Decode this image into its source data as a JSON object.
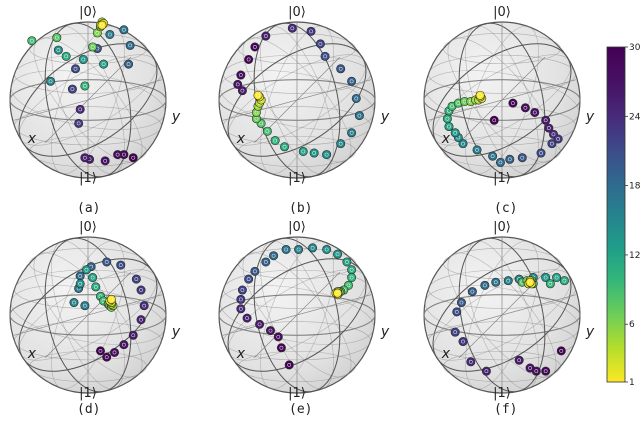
{
  "labels": {
    "top": "|0⟩",
    "bottom": "|1⟩",
    "x_axis": "x",
    "y_axis": "y"
  },
  "colorbar": {
    "ticks": [
      "30",
      "24",
      "18",
      "12",
      "6",
      "1"
    ],
    "min": 1,
    "max": 30
  },
  "colors": {
    "sphere": "#e3e3e3",
    "grid": "#7d7d7d",
    "edge": "#555555"
  },
  "panels": [
    {
      "caption": "(a)",
      "points": [
        [
          0.79,
          0.87
        ],
        [
          0.73,
          0.85
        ],
        [
          0.69,
          0.85
        ],
        [
          0.61,
          0.89
        ],
        [
          0.51,
          0.88
        ],
        [
          0.48,
          0.87
        ],
        [
          0.45,
          0.56
        ],
        [
          0.44,
          0.65
        ],
        [
          0.4,
          0.43
        ],
        [
          0.42,
          0.3
        ],
        [
          0.56,
          0.17
        ],
        [
          0.76,
          0.27
        ],
        [
          0.77,
          0.15
        ],
        [
          0.73,
          0.05
        ],
        [
          0.64,
          0.08
        ],
        [
          0.26,
          0.38
        ],
        [
          0.31,
          0.18
        ],
        [
          0.47,
          0.24
        ],
        [
          0.6,
          0.27
        ],
        [
          0.36,
          0.22
        ],
        [
          0.48,
          0.41
        ],
        [
          0.14,
          0.12
        ],
        [
          0.3,
          0.1
        ],
        [
          0.53,
          0.16
        ],
        [
          0.56,
          0.07
        ],
        [
          0.58,
          0.03
        ],
        [
          0.59,
          0.0
        ],
        [
          0.58,
          0.02
        ],
        [
          0.6,
          0.01
        ],
        [
          0.59,
          0.02
        ]
      ]
    },
    {
      "caption": "(b)",
      "points": [
        [
          0.19,
          0.24
        ],
        [
          0.23,
          0.16
        ],
        [
          0.14,
          0.34
        ],
        [
          0.12,
          0.4
        ],
        [
          0.15,
          0.44
        ],
        [
          0.3,
          0.09
        ],
        [
          0.47,
          0.04
        ],
        [
          0.59,
          0.06
        ],
        [
          0.65,
          0.14
        ],
        [
          0.68,
          0.22
        ],
        [
          0.78,
          0.3
        ],
        [
          0.85,
          0.38
        ],
        [
          0.88,
          0.49
        ],
        [
          0.9,
          0.6
        ],
        [
          0.85,
          0.71
        ],
        [
          0.78,
          0.78
        ],
        [
          0.69,
          0.85
        ],
        [
          0.61,
          0.84
        ],
        [
          0.54,
          0.83
        ],
        [
          0.42,
          0.8
        ],
        [
          0.36,
          0.76
        ],
        [
          0.31,
          0.7
        ],
        [
          0.27,
          0.65
        ],
        [
          0.24,
          0.62
        ],
        [
          0.24,
          0.58
        ],
        [
          0.25,
          0.54
        ],
        [
          0.26,
          0.52
        ],
        [
          0.27,
          0.5
        ],
        [
          0.26,
          0.48
        ],
        [
          0.25,
          0.47
        ]
      ]
    },
    {
      "caption": "(c)",
      "points": [
        [
          0.45,
          0.63
        ],
        [
          0.57,
          0.52
        ],
        [
          0.65,
          0.55
        ],
        [
          0.71,
          0.58
        ],
        [
          0.78,
          0.63
        ],
        [
          0.8,
          0.68
        ],
        [
          0.83,
          0.72
        ],
        [
          0.86,
          0.75
        ],
        [
          0.82,
          0.78
        ],
        [
          0.75,
          0.84
        ],
        [
          0.63,
          0.87
        ],
        [
          0.55,
          0.88
        ],
        [
          0.49,
          0.9
        ],
        [
          0.44,
          0.86
        ],
        [
          0.34,
          0.82
        ],
        [
          0.25,
          0.78
        ],
        [
          0.22,
          0.74
        ],
        [
          0.2,
          0.71
        ],
        [
          0.16,
          0.67
        ],
        [
          0.15,
          0.62
        ],
        [
          0.16,
          0.57
        ],
        [
          0.18,
          0.54
        ],
        [
          0.22,
          0.52
        ],
        [
          0.26,
          0.51
        ],
        [
          0.3,
          0.51
        ],
        [
          0.33,
          0.5
        ],
        [
          0.35,
          0.5
        ],
        [
          0.37,
          0.49
        ],
        [
          0.36,
          0.48
        ],
        [
          0.36,
          0.47
        ]
      ]
    },
    {
      "caption": "(d)",
      "points": [
        [
          0.58,
          0.73
        ],
        [
          0.62,
          0.77
        ],
        [
          0.67,
          0.74
        ],
        [
          0.73,
          0.69
        ],
        [
          0.79,
          0.63
        ],
        [
          0.84,
          0.53
        ],
        [
          0.86,
          0.44
        ],
        [
          0.84,
          0.34
        ],
        [
          0.81,
          0.27
        ],
        [
          0.71,
          0.18
        ],
        [
          0.62,
          0.16
        ],
        [
          0.52,
          0.19
        ],
        [
          0.45,
          0.25
        ],
        [
          0.44,
          0.33
        ],
        [
          0.48,
          0.44
        ],
        [
          0.41,
          0.42
        ],
        [
          0.45,
          0.3
        ],
        [
          0.49,
          0.21
        ],
        [
          0.53,
          0.26
        ],
        [
          0.55,
          0.32
        ],
        [
          0.58,
          0.38
        ],
        [
          0.6,
          0.41
        ],
        [
          0.63,
          0.43
        ],
        [
          0.64,
          0.44
        ],
        [
          0.65,
          0.45
        ],
        [
          0.66,
          0.44
        ],
        [
          0.65,
          0.43
        ],
        [
          0.65,
          0.42
        ],
        [
          0.64,
          0.41
        ],
        [
          0.65,
          0.4
        ]
      ]
    },
    {
      "caption": "(e)",
      "points": [
        [
          0.45,
          0.82
        ],
        [
          0.4,
          0.71
        ],
        [
          0.38,
          0.64
        ],
        [
          0.33,
          0.6
        ],
        [
          0.26,
          0.56
        ],
        [
          0.18,
          0.52
        ],
        [
          0.14,
          0.46
        ],
        [
          0.14,
          0.4
        ],
        [
          0.15,
          0.34
        ],
        [
          0.19,
          0.27
        ],
        [
          0.23,
          0.22
        ],
        [
          0.3,
          0.16
        ],
        [
          0.35,
          0.12
        ],
        [
          0.43,
          0.08
        ],
        [
          0.51,
          0.08
        ],
        [
          0.6,
          0.07
        ],
        [
          0.69,
          0.08
        ],
        [
          0.76,
          0.11
        ],
        [
          0.82,
          0.16
        ],
        [
          0.85,
          0.21
        ],
        [
          0.85,
          0.26
        ],
        [
          0.83,
          0.31
        ],
        [
          0.8,
          0.34
        ],
        [
          0.78,
          0.35
        ],
        [
          0.77,
          0.35
        ],
        [
          0.76,
          0.35
        ],
        [
          0.76,
          0.36
        ],
        [
          0.76,
          0.37
        ],
        [
          0.75,
          0.36
        ],
        [
          0.76,
          0.36
        ]
      ]
    },
    {
      "caption": "(f)",
      "points": [
        [
          0.88,
          0.73
        ],
        [
          0.78,
          0.86
        ],
        [
          0.72,
          0.86
        ],
        [
          0.68,
          0.84
        ],
        [
          0.61,
          0.79
        ],
        [
          0.4,
          0.86
        ],
        [
          0.3,
          0.8
        ],
        [
          0.25,
          0.67
        ],
        [
          0.2,
          0.61
        ],
        [
          0.21,
          0.48
        ],
        [
          0.24,
          0.42
        ],
        [
          0.31,
          0.35
        ],
        [
          0.39,
          0.31
        ],
        [
          0.46,
          0.29
        ],
        [
          0.54,
          0.28
        ],
        [
          0.61,
          0.27
        ],
        [
          0.7,
          0.26
        ],
        [
          0.78,
          0.26
        ],
        [
          0.85,
          0.26
        ],
        [
          0.9,
          0.28
        ],
        [
          0.81,
          0.3
        ],
        [
          0.7,
          0.3
        ],
        [
          0.63,
          0.29
        ],
        [
          0.66,
          0.28
        ],
        [
          0.69,
          0.28
        ],
        [
          0.68,
          0.29
        ],
        [
          0.68,
          0.28
        ],
        [
          0.67,
          0.3
        ],
        [
          0.69,
          0.3
        ],
        [
          0.68,
          0.29
        ]
      ]
    }
  ]
}
